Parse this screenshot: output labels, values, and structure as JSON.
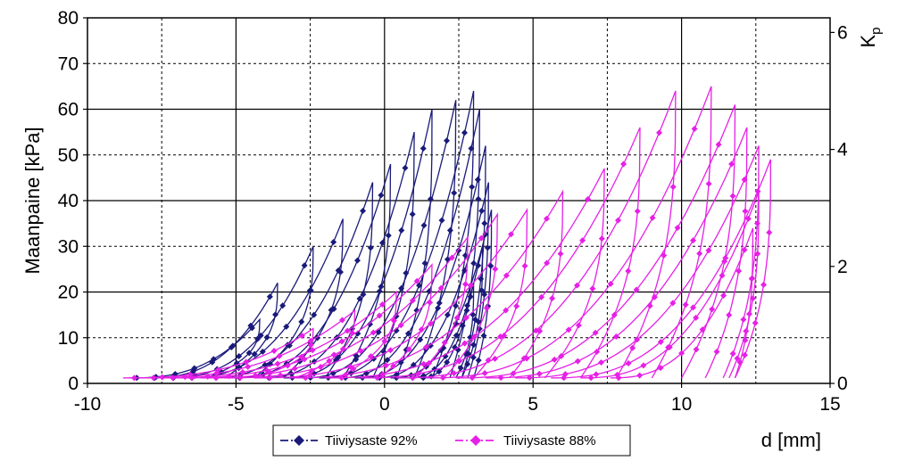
{
  "chart_data": {
    "type": "line",
    "title": "",
    "xlabel": "d [mm]",
    "ylabel": "Maanpaine [kPa]",
    "y2label": {
      "main": "K",
      "sub": "p"
    },
    "xlim": [
      -10,
      15
    ],
    "ylim": [
      0,
      80
    ],
    "y2lim": [
      0,
      6.25
    ],
    "x_ticks": [
      "-10",
      "-5",
      "0",
      "5",
      "10",
      "15"
    ],
    "y_ticks": [
      "0",
      "10",
      "20",
      "30",
      "40",
      "50",
      "60",
      "70",
      "80"
    ],
    "y2_ticks": [
      "0",
      "2",
      "4",
      "6"
    ],
    "grid": true,
    "legend_position": "bottom",
    "series": [
      {
        "name": "Tiiviysaste 92%",
        "color": "#1a1a7a",
        "marker": "diamond",
        "loops": [
          {
            "x0": -8.6,
            "peak_x": -4.2,
            "peak_y": 14,
            "end_x": -6.0
          },
          {
            "x0": -8.0,
            "peak_x": -3.6,
            "peak_y": 22,
            "end_x": -5.4
          },
          {
            "x0": -7.4,
            "peak_x": -2.4,
            "peak_y": 30,
            "end_x": -4.4
          },
          {
            "x0": -6.8,
            "peak_x": -1.4,
            "peak_y": 36,
            "end_x": -3.4
          },
          {
            "x0": -6.0,
            "peak_x": -0.4,
            "peak_y": 44,
            "end_x": -2.0
          },
          {
            "x0": -5.2,
            "peak_x": 0.2,
            "peak_y": 48,
            "end_x": -1.4
          },
          {
            "x0": -4.2,
            "peak_x": 1.0,
            "peak_y": 55,
            "end_x": -0.4
          },
          {
            "x0": -3.4,
            "peak_x": 1.6,
            "peak_y": 60,
            "end_x": 0.4
          },
          {
            "x0": -2.8,
            "peak_x": 2.4,
            "peak_y": 62,
            "end_x": 1.0
          },
          {
            "x0": -2.2,
            "peak_x": 3.0,
            "peak_y": 64,
            "end_x": 1.6
          },
          {
            "x0": -1.6,
            "peak_x": 3.2,
            "peak_y": 60,
            "end_x": 2.2
          },
          {
            "x0": -1.0,
            "peak_x": 3.4,
            "peak_y": 52,
            "end_x": 2.6
          },
          {
            "x0": -0.4,
            "peak_x": 3.5,
            "peak_y": 44,
            "end_x": 2.8
          },
          {
            "x0": 0.2,
            "peak_x": 3.6,
            "peak_y": 38,
            "end_x": 3.0
          },
          {
            "x0": 0.8,
            "peak_x": 3.3,
            "peak_y": 30,
            "end_x": 2.6
          },
          {
            "x0": 1.2,
            "peak_x": 3.0,
            "peak_y": 22,
            "end_x": 2.4
          }
        ]
      },
      {
        "name": "Tiiviysaste 88%",
        "color": "#e620e6",
        "marker": "diamond",
        "loops": [
          {
            "x0": -8.8,
            "peak_x": -2.4,
            "peak_y": 12,
            "end_x": -4.4
          },
          {
            "x0": -8.2,
            "peak_x": -1.0,
            "peak_y": 16,
            "end_x": -3.0
          },
          {
            "x0": -7.6,
            "peak_x": 0.4,
            "peak_y": 20,
            "end_x": -1.6
          },
          {
            "x0": -7.0,
            "peak_x": 1.6,
            "peak_y": 26,
            "end_x": -0.2
          },
          {
            "x0": -6.2,
            "peak_x": 2.8,
            "peak_y": 32,
            "end_x": 1.0
          },
          {
            "x0": -5.4,
            "peak_x": 3.8,
            "peak_y": 37,
            "end_x": 2.0
          },
          {
            "x0": -4.4,
            "peak_x": 4.8,
            "peak_y": 38,
            "end_x": 3.0
          },
          {
            "x0": -3.2,
            "peak_x": 6.0,
            "peak_y": 42,
            "end_x": 4.2
          },
          {
            "x0": -2.0,
            "peak_x": 7.4,
            "peak_y": 47,
            "end_x": 5.4
          },
          {
            "x0": -0.8,
            "peak_x": 8.6,
            "peak_y": 56,
            "end_x": 6.6
          },
          {
            "x0": 0.4,
            "peak_x": 9.8,
            "peak_y": 64,
            "end_x": 7.8
          },
          {
            "x0": 1.4,
            "peak_x": 11.0,
            "peak_y": 65,
            "end_x": 9.0
          },
          {
            "x0": 2.4,
            "peak_x": 11.8,
            "peak_y": 61,
            "end_x": 10.0
          },
          {
            "x0": 3.4,
            "peak_x": 12.2,
            "peak_y": 56,
            "end_x": 10.8
          },
          {
            "x0": 4.4,
            "peak_x": 12.6,
            "peak_y": 52,
            "end_x": 11.4
          },
          {
            "x0": 5.6,
            "peak_x": 13.0,
            "peak_y": 49,
            "end_x": 11.8
          },
          {
            "x0": 6.6,
            "peak_x": 12.6,
            "peak_y": 42,
            "end_x": 11.6
          },
          {
            "x0": 7.6,
            "peak_x": 12.4,
            "peak_y": 34,
            "end_x": 11.8
          }
        ]
      }
    ]
  }
}
